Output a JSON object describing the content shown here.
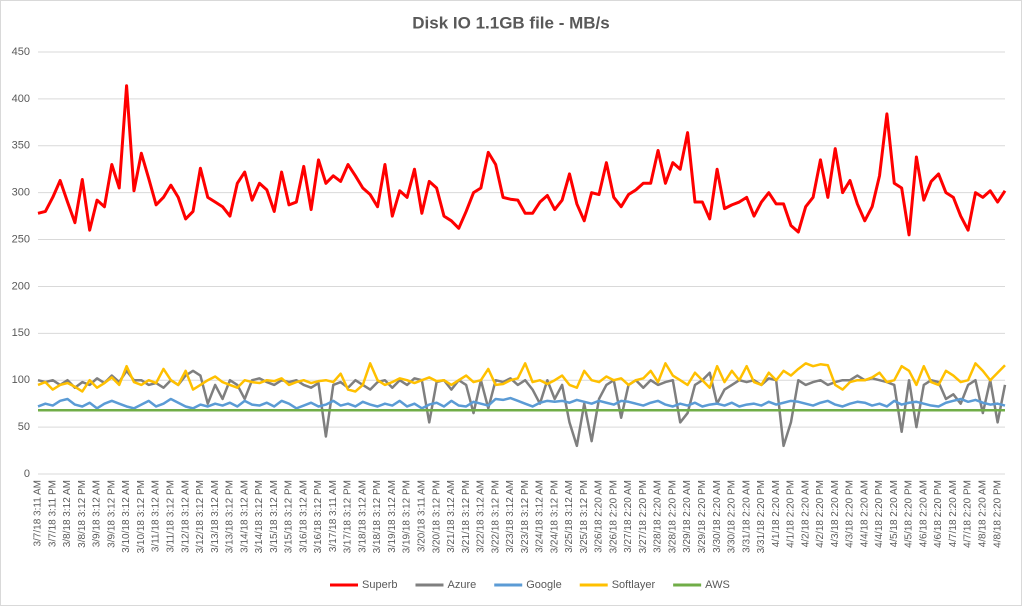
{
  "chart_data": {
    "type": "line",
    "title": "Disk IO 1.1GB file - MB/s",
    "categories": [
      "3/7/18 3:11 AM",
      null,
      "3/7/18 3:11 PM",
      null,
      "3/8/18 3:12 AM",
      null,
      "3/8/18 3:12 PM",
      null,
      "3/9/18 3:12 AM",
      null,
      "3/9/18 3:12 PM",
      null,
      "3/10/18 3:12 AM",
      null,
      "3/10/18 3:12 PM",
      null,
      "3/11/18 3:12 AM",
      null,
      "3/11/18 3:12 PM",
      null,
      "3/12/18 3:12 AM",
      null,
      "3/12/18 3:12 PM",
      null,
      "3/13/18 3:12 AM",
      null,
      "3/13/18 3:12 PM",
      null,
      "3/14/18 3:12 AM",
      null,
      "3/14/18 3:12 PM",
      null,
      "3/15/18 3:12 AM",
      null,
      "3/15/18 3:12 PM",
      null,
      "3/16/18 3:12 AM",
      null,
      "3/16/18 3:12 PM",
      null,
      "3/17/18 3:11 AM",
      null,
      "3/17/18 3:12 PM",
      null,
      "3/18/18 3:12 AM",
      null,
      "3/18/18 3:12 PM",
      null,
      "3/19/18 3:12 AM",
      null,
      "3/19/18 3:12 PM",
      null,
      "3/20/18 3:11 AM",
      null,
      "3/20/18 3:12 PM",
      null,
      "3/21/18 3:12 AM",
      null,
      "3/21/18 3:12 PM",
      null,
      "3/22/18 3:12 AM",
      null,
      "3/22/18 3:12 PM",
      null,
      "3/23/18 3:12 AM",
      null,
      "3/23/18 3:12 PM",
      null,
      "3/24/18 3:12 AM",
      null,
      "3/24/18 3:12 PM",
      null,
      "3/25/18 3:12 AM",
      null,
      "3/25/18 3:12 PM",
      null,
      "3/26/18 2:20 AM",
      null,
      "3/26/18 2:20 PM",
      null,
      "3/27/18 2:20 AM",
      null,
      "3/27/18 2:20 PM",
      null,
      "3/28/18 2:20 AM",
      null,
      "3/28/18 2:20 PM",
      null,
      "3/29/18 2:20 AM",
      null,
      "3/29/18 2:20 PM",
      null,
      "3/30/18 2:20 AM",
      null,
      "3/30/18 2:20 PM",
      null,
      "3/31/18 2:20 AM",
      null,
      "3/31/18 2:20 PM",
      null,
      "4/1/18 2:20 AM",
      null,
      "4/1/18 2:20 PM",
      null,
      "4/2/18 2:20 AM",
      null,
      "4/2/18 2:20 PM",
      null,
      "4/3/18 2:20 AM",
      null,
      "4/3/18 2:20 PM",
      null,
      "4/4/18 2:20 AM",
      null,
      "4/4/18 2:20 PM",
      null,
      "4/5/18 2:20 AM",
      null,
      "4/5/18 2:20 PM",
      null,
      "4/6/18 2:20 AM",
      null,
      "4/6/18 2:20 PM",
      null,
      "4/7/18 2:20 AM",
      null,
      "4/7/18 2:20 PM",
      null,
      "4/8/18 2:20 AM",
      null,
      "4/8/18 2:20 PM",
      null
    ],
    "series": [
      {
        "name": "Superb",
        "color": "#ff0000",
        "values": [
          278,
          280,
          295,
          313,
          290,
          268,
          314,
          260,
          292,
          285,
          330,
          305,
          414,
          302,
          342,
          315,
          287,
          295,
          308,
          295,
          272,
          280,
          326,
          295,
          290,
          285,
          275,
          310,
          322,
          292,
          310,
          303,
          280,
          322,
          287,
          290,
          328,
          282,
          335,
          310,
          318,
          312,
          330,
          318,
          305,
          298,
          285,
          330,
          275,
          302,
          295,
          325,
          278,
          312,
          305,
          275,
          270,
          262,
          280,
          300,
          305,
          343,
          330,
          295,
          293,
          292,
          278,
          278,
          290,
          297,
          282,
          292,
          320,
          288,
          270,
          300,
          298,
          332,
          295,
          285,
          298,
          303,
          310,
          310,
          345,
          310,
          332,
          325,
          364,
          290,
          290,
          272,
          325,
          283,
          287,
          290,
          295,
          275,
          290,
          300,
          288,
          288,
          265,
          258,
          285,
          295,
          335,
          295,
          347,
          300,
          313,
          288,
          270,
          285,
          318,
          384,
          310,
          305,
          255,
          338,
          292,
          312,
          320,
          300,
          295,
          275,
          260,
          300,
          295,
          302,
          290,
          302
        ]
      },
      {
        "name": "Azure",
        "color": "#7f7f7f",
        "values": [
          100,
          98,
          100,
          95,
          100,
          92,
          98,
          95,
          102,
          97,
          105,
          98,
          110,
          100,
          100,
          95,
          97,
          92,
          100,
          95,
          105,
          110,
          105,
          75,
          95,
          80,
          100,
          95,
          80,
          100,
          102,
          98,
          95,
          100,
          98,
          100,
          95,
          92,
          97,
          40,
          95,
          98,
          92,
          100,
          95,
          90,
          98,
          100,
          92,
          100,
          95,
          102,
          100,
          55,
          98,
          100,
          90,
          100,
          95,
          65,
          100,
          70,
          100,
          98,
          102,
          95,
          100,
          90,
          75,
          100,
          80,
          95,
          55,
          30,
          75,
          35,
          80,
          95,
          100,
          60,
          95,
          100,
          92,
          100,
          95,
          98,
          100,
          55,
          65,
          95,
          100,
          108,
          75,
          90,
          95,
          100,
          98,
          100,
          95,
          102,
          100,
          30,
          55,
          100,
          95,
          98,
          100,
          95,
          98,
          100,
          100,
          105,
          100,
          102,
          100,
          98,
          95,
          45,
          100,
          50,
          95,
          100,
          98,
          80,
          85,
          75,
          95,
          100,
          65,
          100,
          55,
          95
        ]
      },
      {
        "name": "Google",
        "color": "#5b9bd5",
        "values": [
          72,
          75,
          73,
          78,
          80,
          74,
          72,
          76,
          70,
          75,
          78,
          75,
          72,
          70,
          74,
          78,
          72,
          75,
          80,
          76,
          72,
          70,
          74,
          72,
          75,
          73,
          76,
          72,
          78,
          74,
          73,
          76,
          72,
          78,
          75,
          70,
          73,
          76,
          72,
          74,
          78,
          73,
          75,
          72,
          77,
          74,
          72,
          75,
          73,
          78,
          72,
          75,
          70,
          74,
          76,
          72,
          78,
          73,
          72,
          77,
          75,
          73,
          80,
          79,
          81,
          78,
          75,
          72,
          76,
          78,
          77,
          78,
          76,
          79,
          77,
          75,
          78,
          76,
          74,
          78,
          77,
          75,
          73,
          76,
          78,
          74,
          72,
          75,
          73,
          76,
          72,
          74,
          75,
          73,
          76,
          72,
          74,
          75,
          73,
          77,
          74,
          76,
          78,
          77,
          75,
          73,
          76,
          78,
          74,
          72,
          75,
          77,
          76,
          73,
          75,
          72,
          78,
          74,
          76,
          77,
          75,
          73,
          72,
          76,
          78,
          80,
          77,
          79,
          76,
          74,
          75,
          73
        ]
      },
      {
        "name": "Softlayer",
        "color": "#ffc000",
        "values": [
          95,
          98,
          90,
          95,
          97,
          93,
          88,
          100,
          92,
          97,
          103,
          95,
          115,
          98,
          95,
          100,
          97,
          112,
          100,
          95,
          110,
          90,
          95,
          100,
          104,
          98,
          95,
          92,
          100,
          98,
          97,
          100,
          99,
          102,
          95,
          98,
          100,
          97,
          99,
          100,
          98,
          107,
          90,
          88,
          95,
          118,
          100,
          95,
          98,
          102,
          100,
          97,
          100,
          103,
          99,
          100,
          95,
          100,
          105,
          98,
          100,
          112,
          95,
          96,
          100,
          102,
          118,
          98,
          100,
          96,
          100,
          105,
          95,
          92,
          110,
          100,
          98,
          104,
          100,
          102,
          95,
          100,
          102,
          110,
          98,
          118,
          105,
          100,
          95,
          108,
          100,
          92,
          115,
          98,
          110,
          100,
          115,
          98,
          95,
          108,
          100,
          110,
          105,
          112,
          118,
          115,
          117,
          116,
          95,
          90,
          98,
          100,
          100,
          103,
          108,
          98,
          100,
          115,
          110,
          95,
          115,
          98,
          95,
          110,
          105,
          98,
          100,
          118,
          110,
          100,
          108,
          116
        ]
      },
      {
        "name": "AWS",
        "color": "#70ad47",
        "values": [
          68,
          68,
          68,
          68,
          68,
          68,
          68,
          68,
          68,
          68,
          68,
          68,
          68,
          68,
          68,
          68,
          68,
          68,
          68,
          68,
          68,
          68,
          68,
          68,
          68,
          68,
          68,
          68,
          68,
          68,
          68,
          68,
          68,
          68,
          68,
          68,
          68,
          68,
          68,
          68,
          68,
          68,
          68,
          68,
          68,
          68,
          68,
          68,
          68,
          68,
          68,
          68,
          68,
          68,
          68,
          68,
          68,
          68,
          68,
          68,
          68,
          68,
          68,
          68,
          68,
          68,
          68,
          68,
          68,
          68,
          68,
          68,
          68,
          68,
          68,
          68,
          68,
          68,
          68,
          68,
          68,
          68,
          68,
          68,
          68,
          68,
          68,
          68,
          68,
          68,
          68,
          68,
          68,
          68,
          68,
          68,
          68,
          68,
          68,
          68,
          68,
          68,
          68,
          68,
          68,
          68,
          68,
          68,
          68,
          68,
          68,
          68,
          68,
          68,
          68,
          68,
          68,
          68,
          68,
          68,
          68,
          68,
          68,
          68,
          68,
          68,
          68,
          68,
          68,
          68,
          68,
          68
        ]
      }
    ],
    "ylim": [
      0,
      450
    ],
    "yticks": [
      0,
      50,
      100,
      150,
      200,
      250,
      300,
      350,
      400,
      450
    ],
    "grid": true,
    "legend": "bottom"
  }
}
